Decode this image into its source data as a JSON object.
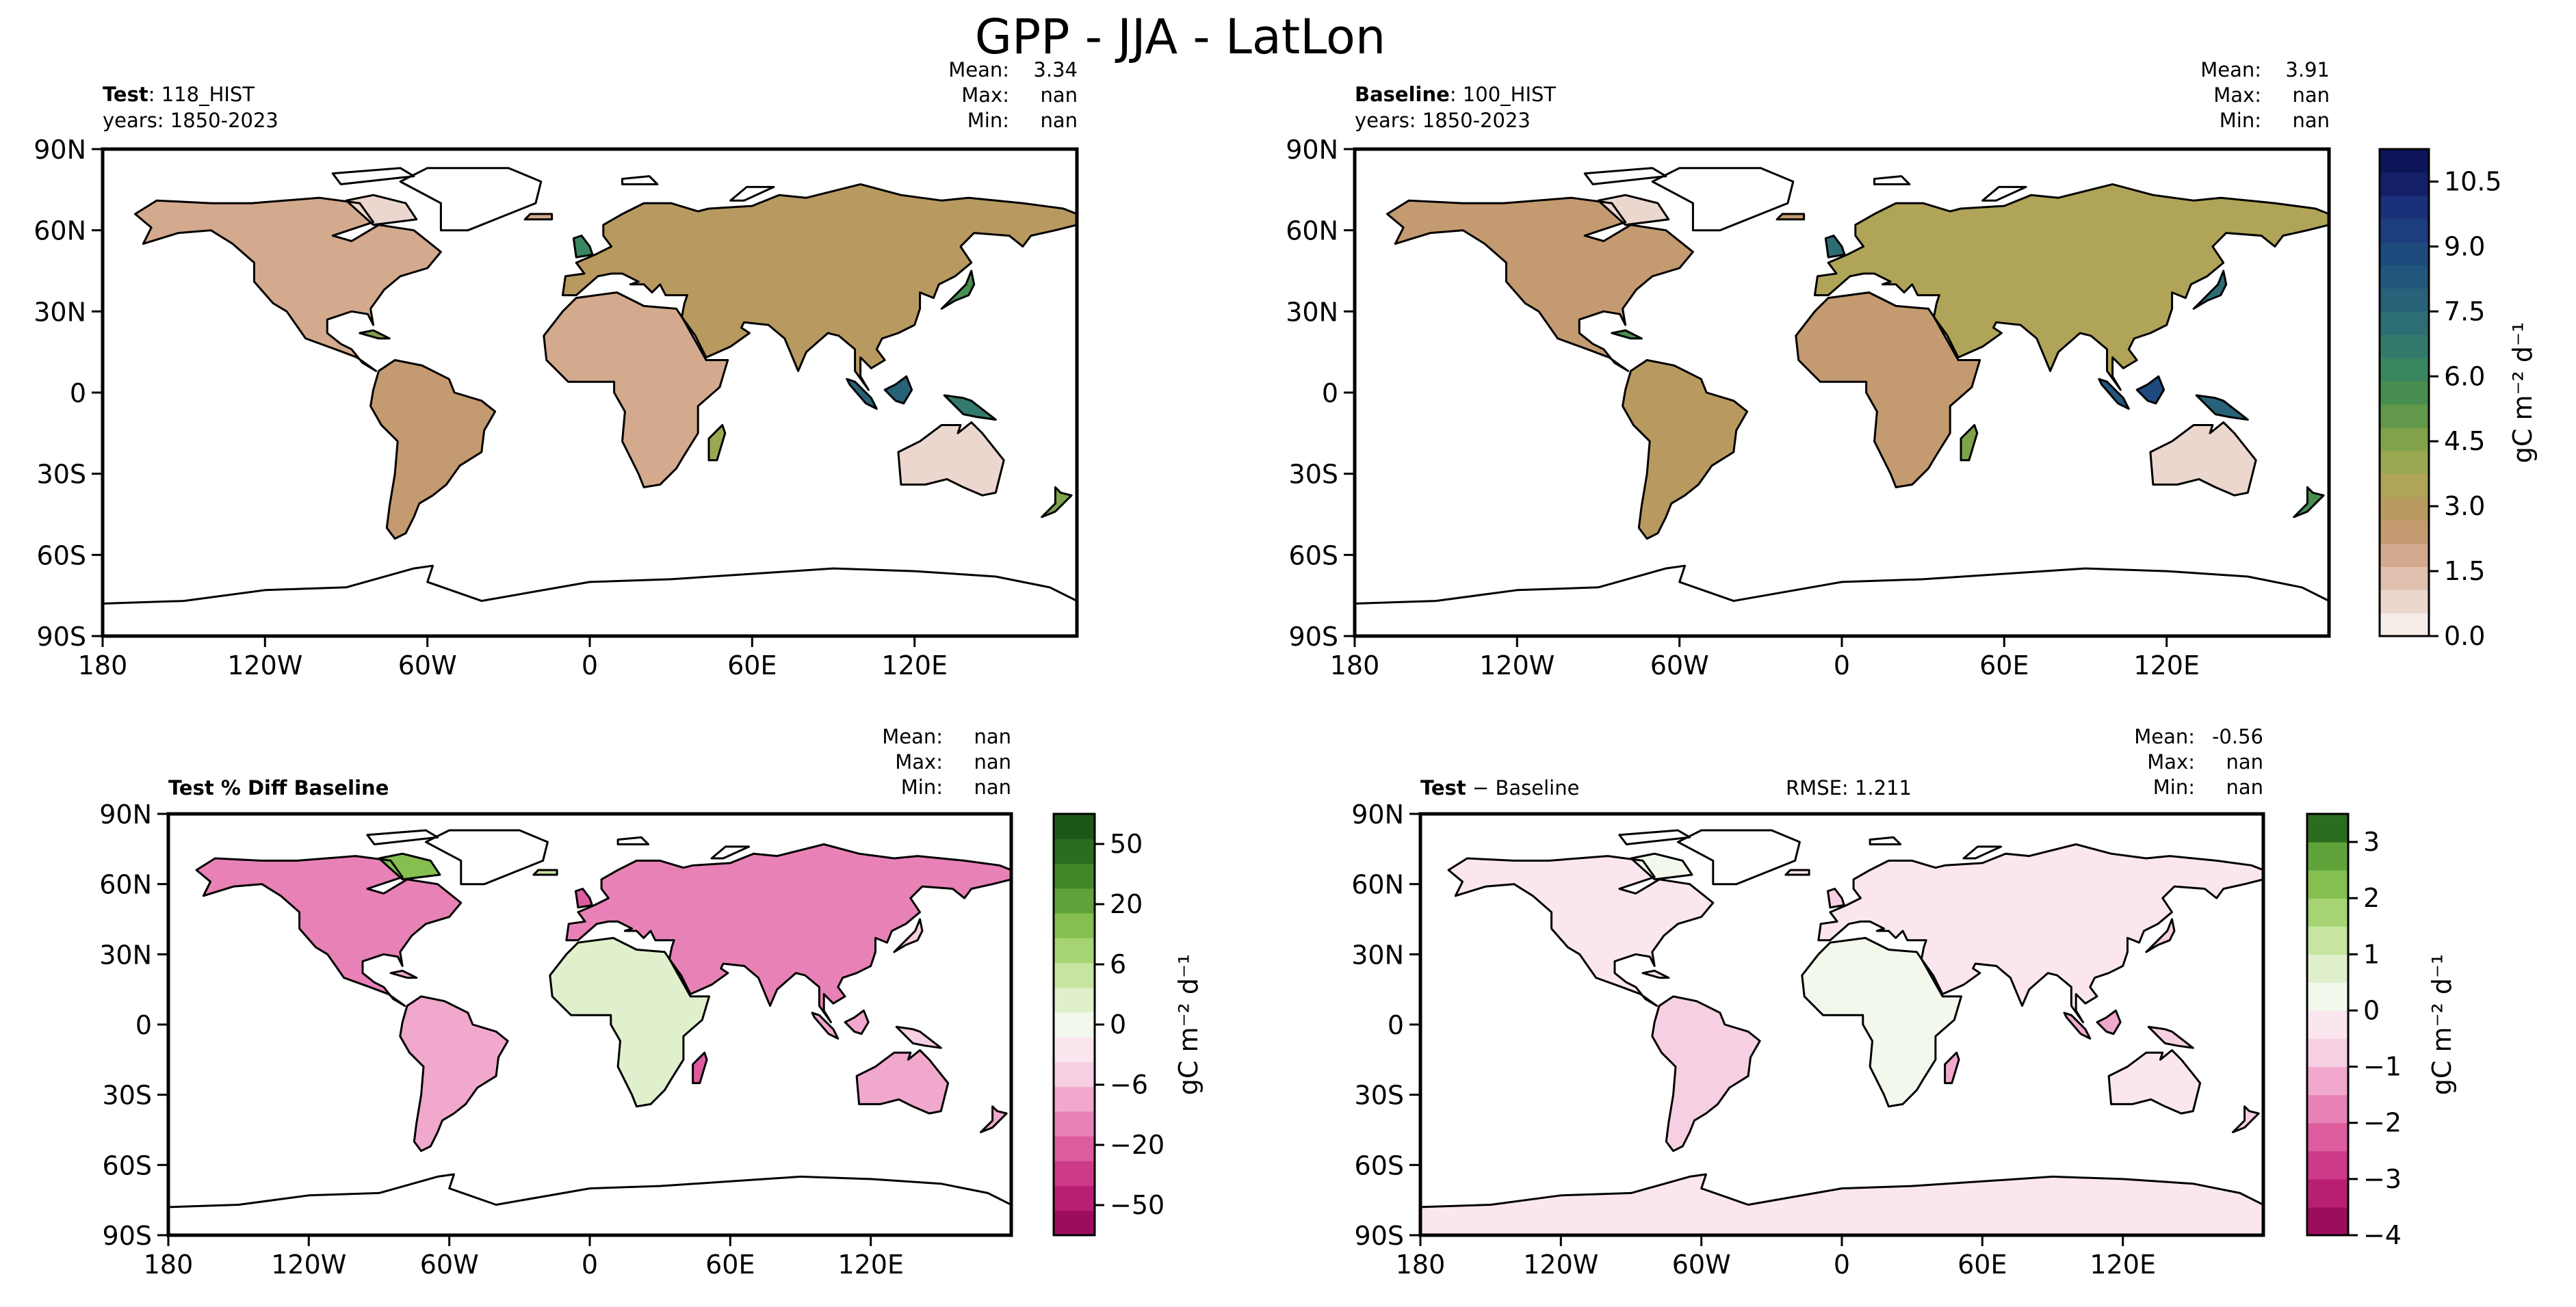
{
  "figure": {
    "title": "GPP - JJA - LatLon"
  },
  "chart_data": [
    {
      "type": "heatmap",
      "id": "test",
      "panel_title_bold": "Test",
      "panel_title_rest": ": 118_HIST",
      "years": "years: 1850-2023",
      "stats": [
        [
          "Mean:",
          "3.34"
        ],
        [
          "Max:",
          "nan"
        ],
        [
          "Min:",
          "nan"
        ]
      ],
      "rmse": "",
      "xlim": [
        -180,
        180
      ],
      "ylim": [
        -90,
        90
      ],
      "xticks": [
        "180",
        "120W",
        "60W",
        "0",
        "60E",
        "120E"
      ],
      "yticks": [
        "90N",
        "60N",
        "30N",
        "0",
        "30S",
        "60S",
        "90S"
      ],
      "colormap": "sequential-brown-green-blue",
      "colorbar": null
    },
    {
      "type": "heatmap",
      "id": "baseline",
      "panel_title_bold": "Baseline",
      "panel_title_rest": ": 100_HIST",
      "years": "years: 1850-2023",
      "stats": [
        [
          "Mean:",
          "3.91"
        ],
        [
          "Max:",
          "nan"
        ],
        [
          "Min:",
          "nan"
        ]
      ],
      "rmse": "",
      "xlim": [
        -180,
        180
      ],
      "ylim": [
        -90,
        90
      ],
      "xticks": [
        "180",
        "120W",
        "60W",
        "0",
        "60E",
        "120E"
      ],
      "yticks": [
        "90N",
        "60N",
        "30N",
        "0",
        "30S",
        "60S",
        "90S"
      ],
      "colormap": "sequential-brown-green-blue",
      "colorbar": {
        "label": "gC m⁻² d⁻¹",
        "range": [
          0,
          11.25
        ],
        "ticks": [
          {
            "v": 0.0,
            "t": "0.0"
          },
          {
            "v": 1.5,
            "t": "1.5"
          },
          {
            "v": 3.0,
            "t": "3.0"
          },
          {
            "v": 4.5,
            "t": "4.5"
          },
          {
            "v": 6.0,
            "t": "6.0"
          },
          {
            "v": 7.5,
            "t": "7.5"
          },
          {
            "v": 9.0,
            "t": "9.0"
          },
          {
            "v": 10.5,
            "t": "10.5"
          }
        ],
        "colors": [
          "#f6ece8",
          "#ecd7cf",
          "#e0c0ae",
          "#d3aa8d",
          "#c49a70",
          "#b89a60",
          "#b0a458",
          "#9aa852",
          "#80a24a",
          "#62984a",
          "#488e50",
          "#3a8660",
          "#337a6c",
          "#2c6e74",
          "#276278",
          "#22567c",
          "#1e4a7e",
          "#1c3d7e",
          "#1a307a",
          "#142068",
          "#0c1458"
        ]
      }
    },
    {
      "type": "heatmap",
      "id": "pctdiff",
      "panel_title_bold": "Test % Diff Baseline",
      "panel_title_rest": "",
      "years": "",
      "stats": [
        [
          "Mean:",
          "nan"
        ],
        [
          "Max:",
          "nan"
        ],
        [
          "Min:",
          "nan"
        ]
      ],
      "rmse": "",
      "xlim": [
        -180,
        180
      ],
      "ylim": [
        -90,
        90
      ],
      "xticks": [
        "180",
        "120W",
        "60W",
        "0",
        "60E",
        "120E"
      ],
      "yticks": [
        "90N",
        "60N",
        "30N",
        "0",
        "30S",
        "60S",
        "90S"
      ],
      "colormap": "diverging-pink-green",
      "colorbar": {
        "label": "gC m⁻² d⁻¹",
        "range": [
          0,
          14
        ],
        "ticks": [
          {
            "v": 1,
            "t": "−50"
          },
          {
            "v": 3,
            "t": "−20"
          },
          {
            "v": 5,
            "t": "−6"
          },
          {
            "v": 7,
            "t": "0"
          },
          {
            "v": 9,
            "t": "6"
          },
          {
            "v": 11,
            "t": "20"
          },
          {
            "v": 13,
            "t": "50"
          }
        ],
        "colors": [
          "#9c0e5c",
          "#b81f72",
          "#cc3a88",
          "#dc5c9e",
          "#e882b6",
          "#f0a8cc",
          "#f7cfe2",
          "#fbe6f0",
          "#f2f8ec",
          "#e0f0cc",
          "#c6e5a0",
          "#a6d474",
          "#84bf50",
          "#60a33a",
          "#43862a",
          "#2c6c1f",
          "#1e5818"
        ]
      }
    },
    {
      "type": "heatmap",
      "id": "diff",
      "panel_title_bold": "Test",
      "panel_title_rest": " − Baseline",
      "years": "",
      "stats": [
        [
          "Mean:",
          "-0.56"
        ],
        [
          "Max:",
          "nan"
        ],
        [
          "Min:",
          "nan"
        ]
      ],
      "rmse": "RMSE: 1.211",
      "xlim": [
        -180,
        180
      ],
      "ylim": [
        -90,
        90
      ],
      "xticks": [
        "180",
        "120W",
        "60W",
        "0",
        "60E",
        "120E"
      ],
      "yticks": [
        "90N",
        "60N",
        "30N",
        "0",
        "30S",
        "60S",
        "90S"
      ],
      "colormap": "diverging-pink-green",
      "colorbar": {
        "label": "gC m⁻² d⁻¹",
        "range": [
          -4,
          3.5
        ],
        "ticks": [
          {
            "v": -4,
            "t": "−4"
          },
          {
            "v": -3,
            "t": "−3"
          },
          {
            "v": -2,
            "t": "−2"
          },
          {
            "v": -1,
            "t": "−1"
          },
          {
            "v": 0,
            "t": "0"
          },
          {
            "v": 1,
            "t": "1"
          },
          {
            "v": 2,
            "t": "2"
          },
          {
            "v": 3,
            "t": "3"
          }
        ],
        "colors": [
          "#9c0e5c",
          "#b81f72",
          "#cc3a88",
          "#dc5c9e",
          "#e882b6",
          "#f0a8cc",
          "#f7cfe2",
          "#fbe6f0",
          "#f2f8ec",
          "#e0f0cc",
          "#c6e5a0",
          "#a6d474",
          "#84bf50",
          "#60a33a",
          "#2c6c1f"
        ]
      }
    }
  ]
}
